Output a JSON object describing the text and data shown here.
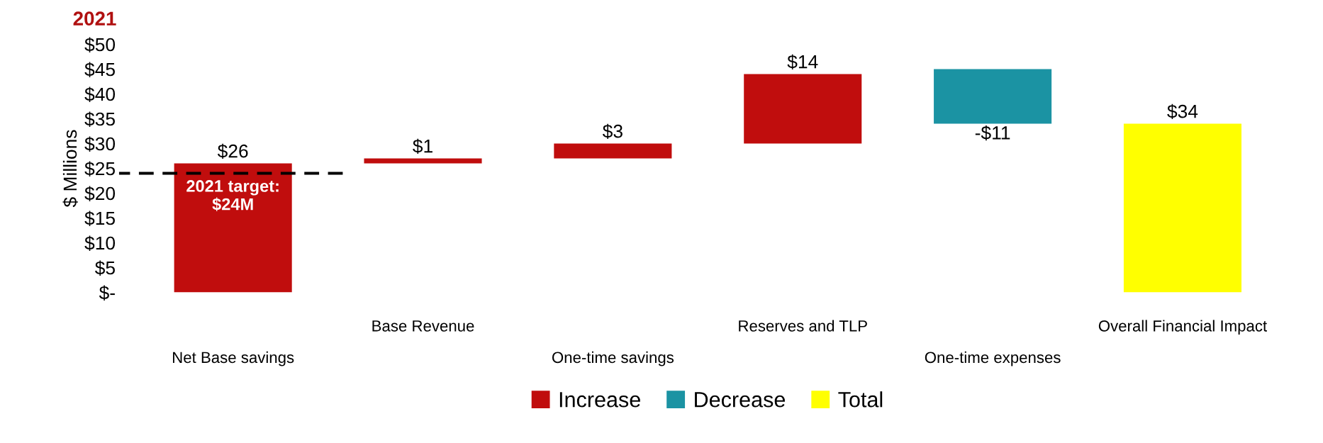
{
  "chart_data": {
    "type": "bar",
    "title": "2021",
    "ylabel": "$ Millions",
    "categories": [
      "Net Base savings",
      "Base Revenue",
      "One-time savings",
      "Reserves and TLP",
      "One-time expenses",
      "Overall Financial Impact"
    ],
    "series": [
      {
        "name": "Increase",
        "color": "#c00d0d",
        "base": [
          0,
          26,
          27,
          30,
          null,
          null
        ],
        "values": [
          26,
          1,
          3,
          14,
          null,
          null
        ],
        "value_labels": [
          "$26",
          "$1",
          "$3",
          "$14",
          null,
          null
        ]
      },
      {
        "name": "Decrease",
        "color": "#1b93a3",
        "base": [
          null,
          null,
          null,
          null,
          45,
          null
        ],
        "values": [
          null,
          null,
          null,
          null,
          -11,
          null
        ],
        "value_labels": [
          null,
          null,
          null,
          null,
          "-$11",
          null
        ]
      },
      {
        "name": "Total",
        "color": "#ffff00",
        "base": [
          null,
          null,
          null,
          null,
          null,
          0
        ],
        "values": [
          null,
          null,
          null,
          null,
          null,
          34
        ],
        "value_labels": [
          null,
          null,
          null,
          null,
          null,
          "$34"
        ]
      }
    ],
    "ylim": [
      0,
      50
    ],
    "yticks": [
      {
        "value": 0,
        "label": "$-"
      },
      {
        "value": 5,
        "label": "$5"
      },
      {
        "value": 10,
        "label": "$10"
      },
      {
        "value": 15,
        "label": "$15"
      },
      {
        "value": 20,
        "label": "$20"
      },
      {
        "value": 25,
        "label": "$25"
      },
      {
        "value": 30,
        "label": "$30"
      },
      {
        "value": 35,
        "label": "$35"
      },
      {
        "value": 40,
        "label": "$40"
      },
      {
        "value": 45,
        "label": "$45"
      },
      {
        "value": 50,
        "label": "$50"
      }
    ],
    "ref_lines": [
      {
        "axis": "y",
        "value": 24,
        "label": "2021 target:\n$24M",
        "color": "#000000",
        "line_style": "dashed"
      }
    ],
    "grid": false,
    "legend": "bottom"
  }
}
